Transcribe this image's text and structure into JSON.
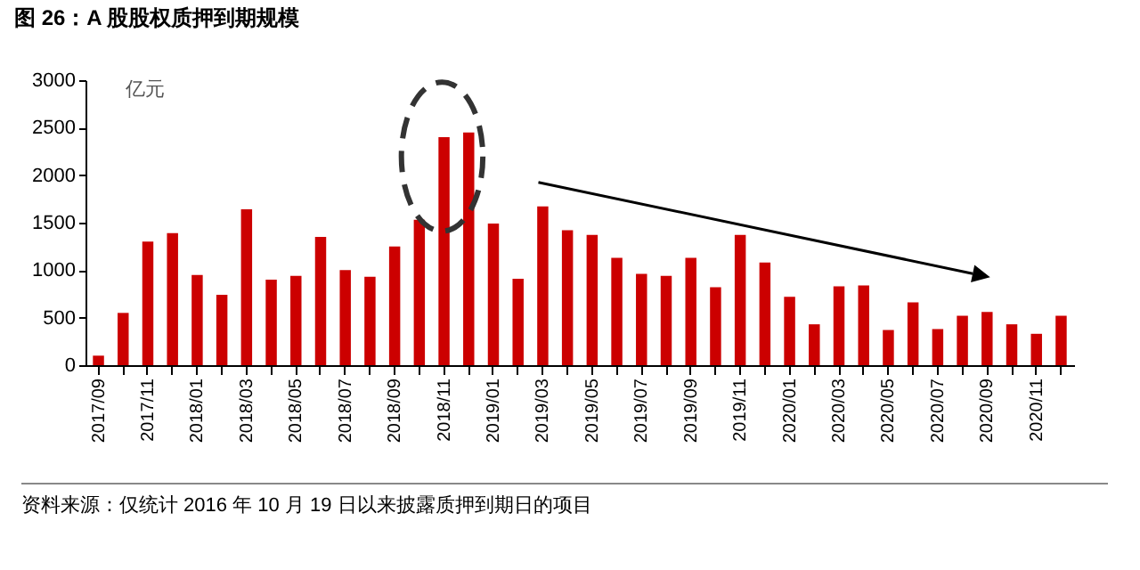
{
  "chart_data": {
    "type": "bar",
    "title": "图 26：A 股股权质押到期规模",
    "ylabel": "亿元",
    "categories": [
      "2017/09",
      null,
      "2017/11",
      null,
      "2018/01",
      null,
      "2018/03",
      null,
      "2018/05",
      null,
      "2018/07",
      null,
      "2018/09",
      null,
      "2018/11",
      null,
      "2019/01",
      null,
      "2019/03",
      null,
      "2019/05",
      null,
      "2019/07",
      null,
      "2019/09",
      null,
      "2019/11",
      null,
      "2020/01",
      null,
      "2020/03",
      null,
      "2020/05",
      null,
      "2020/07",
      null,
      "2020/09",
      null,
      "2020/11",
      null
    ],
    "values": [
      100,
      550,
      1300,
      1390,
      950,
      740,
      1640,
      900,
      940,
      1350,
      1000,
      930,
      1250,
      1530,
      2400,
      2450,
      1490,
      910,
      1670,
      1420,
      1370,
      1130,
      960,
      940,
      1130,
      820,
      1370,
      1080,
      720,
      430,
      830,
      840,
      370,
      660,
      380,
      520,
      560,
      430,
      330,
      520
    ],
    "color": "#cc0000",
    "ylim": [
      0,
      3000
    ],
    "yticks": [
      0,
      500,
      1000,
      1500,
      2000,
      2500,
      3000
    ],
    "grid": false,
    "annotations": [
      "资料来源：仅统计 2016 年 10 月 19 日以来披露质押到期日的项目"
    ]
  }
}
